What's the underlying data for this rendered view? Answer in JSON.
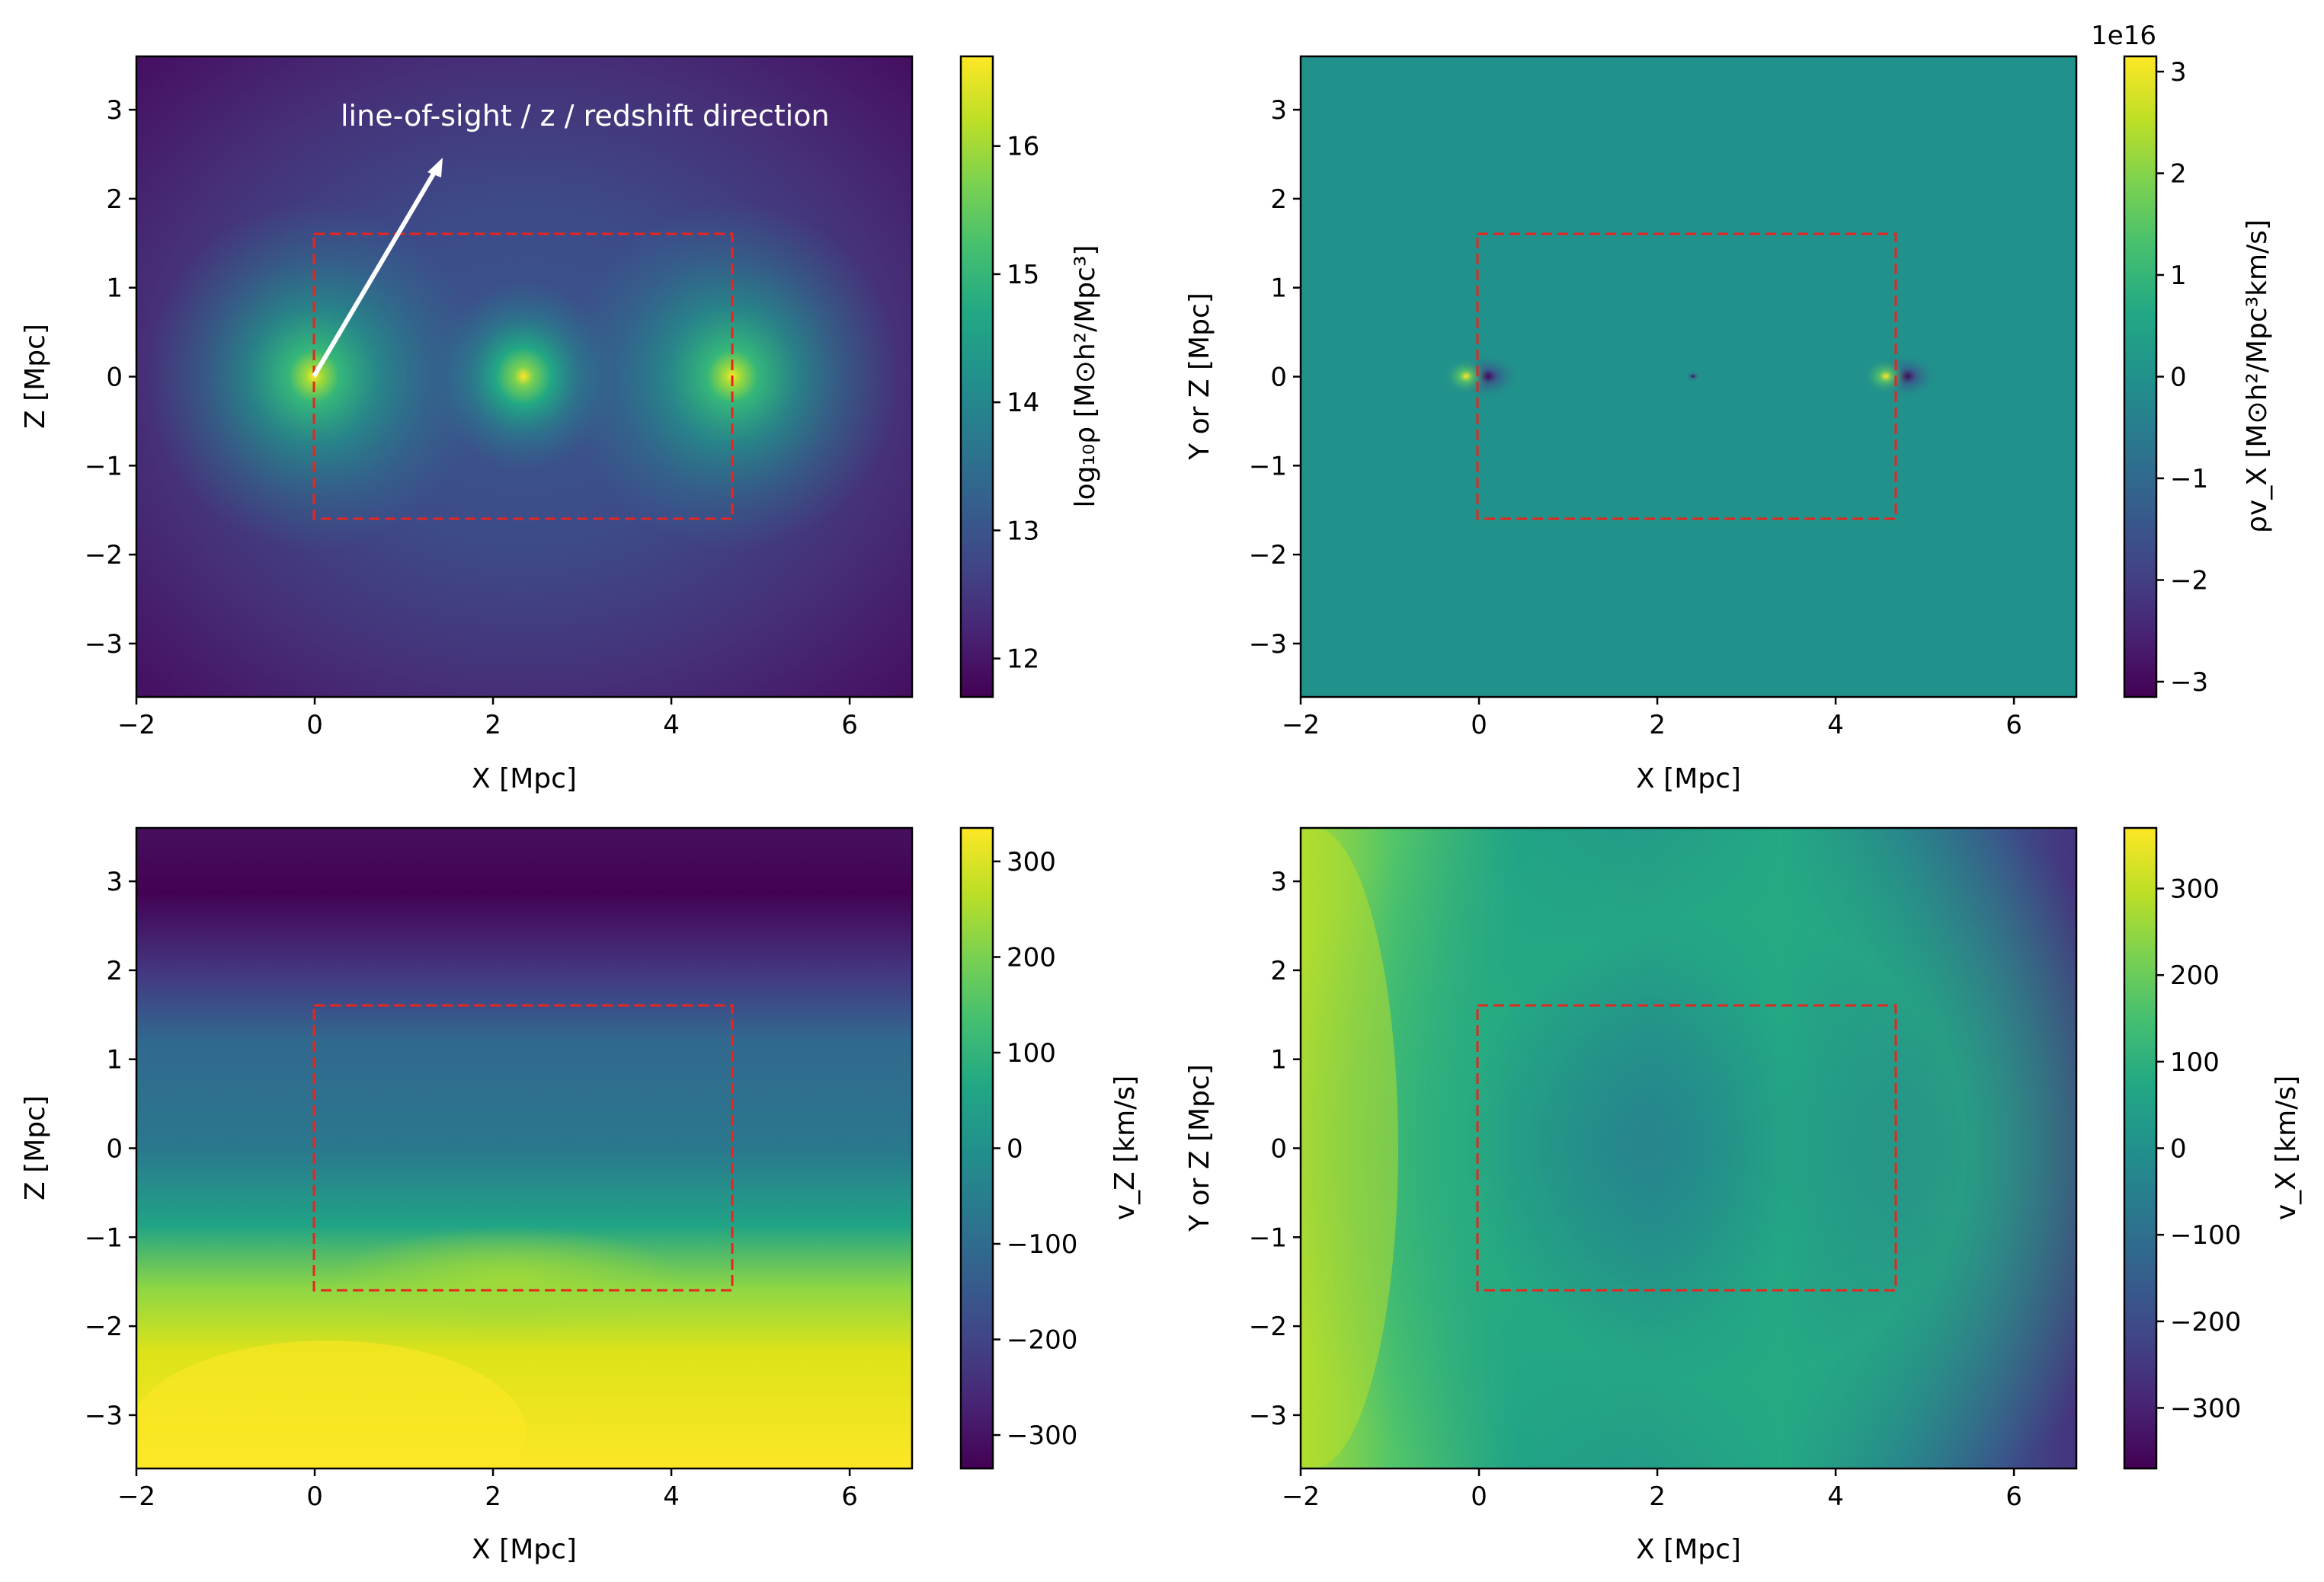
{
  "chart_data": [
    {
      "type": "heatmap",
      "panel": "top-left",
      "field": "log-density",
      "title": "",
      "xlabel": "X [Mpc]",
      "ylabel": "Z [Mpc]",
      "xlim": [
        -2.0,
        6.7
      ],
      "ylim": [
        -3.6,
        3.6
      ],
      "xticks": [
        -2,
        0,
        2,
        4,
        6
      ],
      "yticks": [
        -3,
        -2,
        -1,
        0,
        1,
        2,
        3
      ],
      "colormap": "viridis",
      "colorbar": {
        "label": "log₁₀ρ [M⊙h²/Mpc³]",
        "range": [
          11.7,
          16.7
        ],
        "ticks": [
          12,
          13,
          14,
          15,
          16
        ],
        "offset_text": ""
      },
      "halos": [
        {
          "x": 0.0,
          "z": 0.0
        },
        {
          "x": 2.35,
          "z": 0.0
        },
        {
          "x": 4.7,
          "z": 0.0
        }
      ],
      "box": {
        "x0": 0.0,
        "x1": 4.7,
        "y0": -1.6,
        "y1": 1.6,
        "color": "#e8251e",
        "style": "dashed"
      },
      "arrow": {
        "x0": 0.0,
        "y0": 0.0,
        "x1": 1.45,
        "y1": 2.5
      },
      "annotation": {
        "text": "line-of-sight / z / redshift direction",
        "x": 0.3,
        "y": 2.85
      }
    },
    {
      "type": "heatmap",
      "panel": "top-right",
      "field": "momentum-x",
      "title": "",
      "xlabel": "X [Mpc]",
      "ylabel": "Y or Z [Mpc]",
      "xlim": [
        -2.0,
        6.7
      ],
      "ylim": [
        -3.6,
        3.6
      ],
      "xticks": [
        -2,
        0,
        2,
        4,
        6
      ],
      "yticks": [
        -3,
        -2,
        -1,
        0,
        1,
        2,
        3
      ],
      "colormap": "viridis",
      "colorbar": {
        "label": "ρv_X [M⊙h²/Mpc³km/s]",
        "range": [
          -3.15,
          3.15
        ],
        "ticks": [
          -3,
          -2,
          -1,
          0,
          1,
          2,
          3
        ],
        "offset_text": "1e16"
      },
      "dipoles": [
        {
          "x": 0.0,
          "z": 0.0
        },
        {
          "x": 2.35,
          "z": 0.0
        },
        {
          "x": 4.7,
          "z": 0.0
        }
      ],
      "box": {
        "x0": 0.0,
        "x1": 4.7,
        "y0": -1.6,
        "y1": 1.6,
        "color": "#e8251e",
        "style": "dashed"
      }
    },
    {
      "type": "heatmap",
      "panel": "bottom-left",
      "field": "velocity-z",
      "title": "",
      "xlabel": "X [Mpc]",
      "ylabel": "Z [Mpc]",
      "xlim": [
        -2.0,
        6.7
      ],
      "ylim": [
        -3.6,
        3.6
      ],
      "xticks": [
        -2,
        0,
        2,
        4,
        6
      ],
      "yticks": [
        -3,
        -2,
        -1,
        0,
        1,
        2,
        3
      ],
      "colormap": "viridis",
      "colorbar": {
        "label": "v_Z [km/s]",
        "range": [
          -335,
          335
        ],
        "ticks": [
          -300,
          -200,
          -100,
          0,
          100,
          200,
          300
        ],
        "offset_text": ""
      },
      "box": {
        "x0": 0.0,
        "x1": 4.7,
        "y0": -1.6,
        "y1": 1.6,
        "color": "#e8251e",
        "style": "dashed"
      }
    },
    {
      "type": "heatmap",
      "panel": "bottom-right",
      "field": "velocity-x",
      "title": "",
      "xlabel": "X [Mpc]",
      "ylabel": "Y or Z [Mpc]",
      "xlim": [
        -2.0,
        6.7
      ],
      "ylim": [
        -3.6,
        3.6
      ],
      "xticks": [
        -2,
        0,
        2,
        4,
        6
      ],
      "yticks": [
        -3,
        -2,
        -1,
        0,
        1,
        2,
        3
      ],
      "colormap": "viridis",
      "colorbar": {
        "label": "v_X [km/s]",
        "range": [
          -370,
          370
        ],
        "ticks": [
          -300,
          -200,
          -100,
          0,
          100,
          200,
          300
        ],
        "offset_text": ""
      },
      "box": {
        "x0": 0.0,
        "x1": 4.7,
        "y0": -1.6,
        "y1": 1.6,
        "color": "#e8251e",
        "style": "dashed"
      }
    }
  ]
}
